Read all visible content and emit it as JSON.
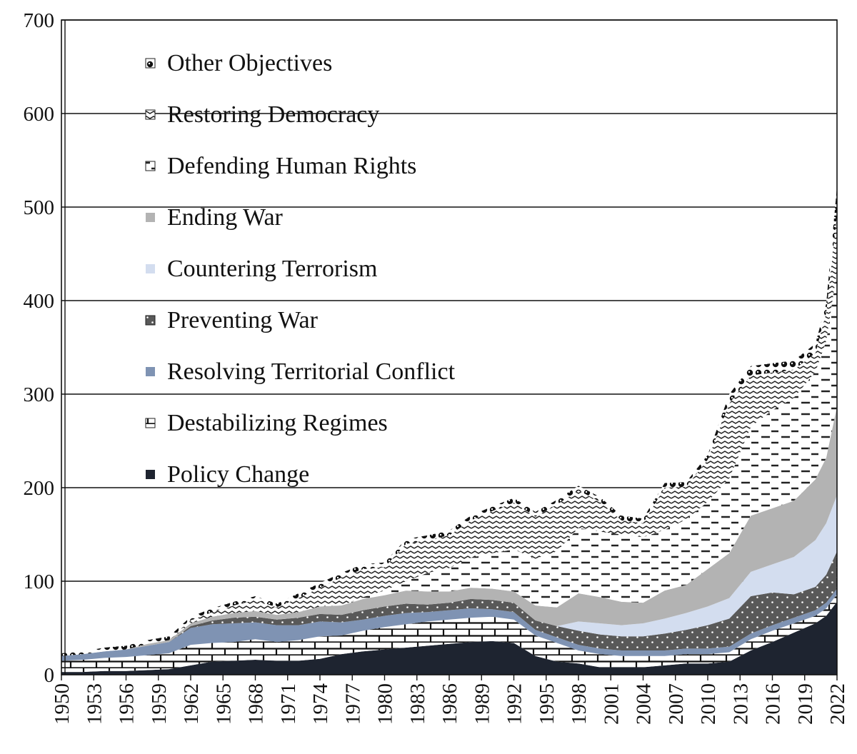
{
  "chart_data": {
    "type": "area",
    "stacked": true,
    "title": "",
    "xlabel": "",
    "ylabel": "",
    "ylim": [
      0,
      700
    ],
    "yticks": [
      0,
      100,
      200,
      300,
      400,
      500,
      600,
      700
    ],
    "xlim": [
      1950,
      2022
    ],
    "xticks": [
      1950,
      1953,
      1956,
      1959,
      1962,
      1965,
      1968,
      1971,
      1974,
      1977,
      1980,
      1983,
      1986,
      1989,
      1992,
      1995,
      1998,
      2001,
      2004,
      2007,
      2010,
      2013,
      2016,
      2019,
      2022
    ],
    "grid": "horizontal",
    "legend_position": "top-left inside plot, stacked top to bottom",
    "years": [
      1950,
      1952,
      1954,
      1956,
      1958,
      1960,
      1962,
      1964,
      1966,
      1968,
      1970,
      1972,
      1974,
      1976,
      1978,
      1980,
      1982,
      1984,
      1986,
      1988,
      1990,
      1992,
      1994,
      1996,
      1998,
      2000,
      2002,
      2004,
      2006,
      2008,
      2010,
      2012,
      2014,
      2016,
      2018,
      2020,
      2021,
      2022
    ],
    "series": [
      {
        "name": "Policy Change",
        "color": "#1e2430",
        "pattern": "solid",
        "values": [
          3,
          3,
          4,
          4,
          5,
          6,
          10,
          14,
          15,
          16,
          15,
          15,
          17,
          22,
          25,
          27,
          29,
          31,
          33,
          35,
          36,
          34,
          20,
          14,
          12,
          8,
          8,
          8,
          10,
          12,
          12,
          14,
          26,
          35,
          45,
          55,
          63,
          78
        ]
      },
      {
        "name": "Destabilizing Regimes",
        "color": "#ffffff",
        "pattern": "brick",
        "values": [
          12,
          13,
          14,
          15,
          16,
          17,
          22,
          20,
          20,
          22,
          20,
          22,
          24,
          20,
          22,
          24,
          25,
          26,
          26,
          26,
          26,
          25,
          22,
          20,
          14,
          14,
          12,
          12,
          10,
          10,
          10,
          10,
          12,
          12,
          10,
          8,
          8,
          8
        ]
      },
      {
        "name": "Resolving Territorial Conflict",
        "color": "#7f93b3",
        "pattern": "solid",
        "values": [
          5,
          6,
          7,
          8,
          10,
          12,
          18,
          20,
          20,
          18,
          18,
          16,
          16,
          14,
          12,
          12,
          12,
          10,
          10,
          10,
          8,
          8,
          6,
          6,
          6,
          6,
          6,
          6,
          6,
          6,
          6,
          6,
          6,
          6,
          6,
          6,
          6,
          6
        ]
      },
      {
        "name": "Preventing War",
        "color": "#595959",
        "pattern": "dots",
        "values": [
          0,
          0,
          0,
          0,
          0,
          0,
          2,
          4,
          6,
          6,
          6,
          8,
          8,
          8,
          10,
          10,
          10,
          8,
          8,
          10,
          10,
          10,
          10,
          12,
          15,
          15,
          15,
          15,
          18,
          20,
          25,
          30,
          40,
          35,
          25,
          25,
          30,
          40
        ]
      },
      {
        "name": "Countering Terrorism",
        "color": "#d3ddef",
        "pattern": "solid",
        "values": [
          0,
          0,
          0,
          0,
          0,
          0,
          0,
          0,
          0,
          0,
          0,
          0,
          0,
          0,
          0,
          0,
          0,
          0,
          0,
          0,
          0,
          0,
          0,
          0,
          10,
          12,
          12,
          14,
          16,
          18,
          20,
          22,
          26,
          30,
          40,
          50,
          55,
          60
        ]
      },
      {
        "name": "Ending War",
        "color": "#b3b3b3",
        "pattern": "solid",
        "values": [
          0,
          0,
          0,
          0,
          2,
          2,
          3,
          4,
          5,
          6,
          5,
          6,
          8,
          10,
          12,
          12,
          14,
          14,
          12,
          12,
          12,
          12,
          16,
          20,
          30,
          28,
          25,
          22,
          30,
          30,
          40,
          48,
          60,
          60,
          60,
          65,
          70,
          95
        ]
      },
      {
        "name": "Defending Human Rights",
        "color": "#ffffff",
        "pattern": "dashes",
        "values": [
          0,
          0,
          0,
          0,
          0,
          0,
          0,
          0,
          0,
          0,
          0,
          0,
          0,
          0,
          2,
          5,
          10,
          20,
          25,
          32,
          38,
          45,
          50,
          60,
          70,
          70,
          72,
          70,
          65,
          70,
          72,
          80,
          95,
          105,
          110,
          115,
          125,
          145
        ]
      },
      {
        "name": "Restoring Democracy",
        "color": "#ffffff",
        "pattern": "zigzag",
        "values": [
          0,
          0,
          0,
          0,
          0,
          0,
          3,
          5,
          8,
          12,
          8,
          15,
          20,
          30,
          30,
          25,
          40,
          35,
          35,
          40,
          45,
          50,
          45,
          50,
          40,
          32,
          15,
          15,
          45,
          35,
          45,
          80,
          55,
          40,
          30,
          20,
          30,
          60
        ]
      },
      {
        "name": "Other Objectives",
        "color": "#000000",
        "pattern": "circles",
        "values": [
          3,
          3,
          4,
          4,
          4,
          4,
          4,
          4,
          4,
          4,
          4,
          5,
          5,
          5,
          5,
          5,
          5,
          5,
          5,
          5,
          5,
          5,
          5,
          5,
          5,
          5,
          5,
          5,
          5,
          5,
          5,
          10,
          10,
          10,
          10,
          10,
          10,
          30
        ]
      }
    ]
  },
  "legend_order": [
    "Other Objectives",
    "Restoring Democracy",
    "Defending Human Rights",
    "Ending War",
    "Countering Terrorism",
    "Preventing War",
    "Resolving Territorial Conflict",
    "Destabilizing Regimes",
    "Policy Change"
  ]
}
